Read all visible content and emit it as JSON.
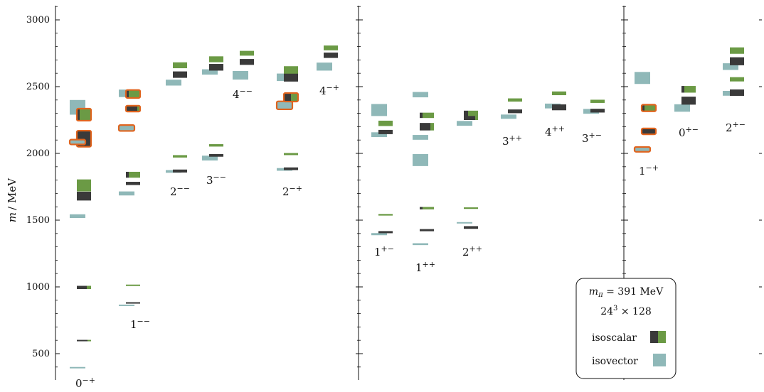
{
  "colors": {
    "isoscalar_dark": "#3a3a3a",
    "isoscalar_green": "#6b9a45",
    "isovector": "#8fb8b8",
    "highlight": "#e0641e",
    "axis": "#111111"
  },
  "chart_data": {
    "type": "spectrum",
    "ylabel_m": "m",
    "ylabel_unit": "/ MeV",
    "ylim": [
      300,
      3130
    ],
    "yticks": [
      500,
      1000,
      1500,
      2000,
      2500,
      3000
    ],
    "yticklabels": [
      "500",
      "1000",
      "1500",
      "2000",
      "2500",
      "3000"
    ],
    "legend": {
      "line1": "m",
      "line1_sub": "π",
      "line1_rest": " = 391 MeV",
      "line2_base": "24",
      "line2_sup": "3",
      "line2_rest": " × 128",
      "isoscalar": "isoscalar",
      "isovector": "isovector"
    },
    "channel_labels": [
      {
        "J": "0",
        "PC": "−+",
        "panel": 0,
        "col": 0
      },
      {
        "J": "1",
        "PC": "−−",
        "panel": 0,
        "col": 1
      },
      {
        "J": "2",
        "PC": "−−",
        "panel": 0,
        "col": 2
      },
      {
        "J": "3",
        "PC": "−−",
        "panel": 0,
        "col": 3
      },
      {
        "J": "4",
        "PC": "−−",
        "panel": 0,
        "col": 4
      },
      {
        "J": "2",
        "PC": "−+",
        "panel": 0,
        "col": 5
      },
      {
        "J": "4",
        "PC": "−+",
        "panel": 0,
        "col": 6
      },
      {
        "J": "1",
        "PC": "+−",
        "panel": 1,
        "col": 0
      },
      {
        "J": "1",
        "PC": "++",
        "panel": 1,
        "col": 1
      },
      {
        "J": "2",
        "PC": "++",
        "panel": 1,
        "col": 2
      },
      {
        "J": "3",
        "PC": "++",
        "panel": 1,
        "col": 3
      },
      {
        "J": "4",
        "PC": "++",
        "panel": 1,
        "col": 4
      },
      {
        "J": "3",
        "PC": "+−",
        "panel": 1,
        "col": 5
      },
      {
        "J": "1",
        "PC": "−+",
        "panel": 2,
        "col": 0
      },
      {
        "J": "0",
        "PC": "+−",
        "panel": 2,
        "col": 1
      },
      {
        "J": "2",
        "PC": "+−",
        "panel": 2,
        "col": 2
      }
    ],
    "states": [
      {
        "channel": 0,
        "kind": "isovector",
        "m": 395,
        "e": 3,
        "hl": false
      },
      {
        "channel": 0,
        "kind": "isoscalar",
        "m": 598,
        "e": 5,
        "frac": 0.75,
        "hl": false
      },
      {
        "channel": 0,
        "kind": "isoscalar",
        "m": 996,
        "e": 12,
        "frac": 0.7,
        "hl": false
      },
      {
        "channel": 0,
        "kind": "isovector",
        "m": 1530,
        "e": 14,
        "hl": false
      },
      {
        "channel": 0,
        "kind": "isoscalar",
        "m": 1680,
        "e": 33,
        "frac": 1.0,
        "hl": false
      },
      {
        "channel": 0,
        "kind": "isoscalar",
        "m": 1760,
        "e": 45,
        "frac": 0.0,
        "hl": false
      },
      {
        "channel": 0,
        "kind": "isoscalar",
        "m": 2110,
        "e": 60,
        "frac": 1.0,
        "hl": true
      },
      {
        "channel": 0,
        "kind": "isovector",
        "m": 2085,
        "e": 18,
        "hl": true
      },
      {
        "channel": 0,
        "kind": "isovector",
        "m": 2345,
        "e": 55,
        "hl": false
      },
      {
        "channel": 0,
        "kind": "isoscalar",
        "m": 2290,
        "e": 45,
        "frac": 0.2,
        "hl": true
      },
      {
        "channel": 1,
        "kind": "isovector",
        "m": 862,
        "e": 3,
        "hl": false
      },
      {
        "channel": 1,
        "kind": "isoscalar",
        "m": 880,
        "e": 4,
        "frac": 1.0,
        "hl": false
      },
      {
        "channel": 1,
        "kind": "isoscalar",
        "m": 1012,
        "e": 3,
        "frac": 0.0,
        "hl": false
      },
      {
        "channel": 1,
        "kind": "isovector",
        "m": 1700,
        "e": 15,
        "hl": false
      },
      {
        "channel": 1,
        "kind": "isoscalar",
        "m": 1775,
        "e": 12,
        "frac": 1.0,
        "hl": false
      },
      {
        "channel": 1,
        "kind": "isoscalar",
        "m": 1840,
        "e": 22,
        "frac": 0.2,
        "hl": false
      },
      {
        "channel": 1,
        "kind": "isovector",
        "m": 2190,
        "e": 22,
        "hl": true
      },
      {
        "channel": 1,
        "kind": "isoscalar",
        "m": 2335,
        "e": 22,
        "frac": 0.8,
        "hl": true
      },
      {
        "channel": 1,
        "kind": "isovector",
        "m": 2450,
        "e": 28,
        "hl": false
      },
      {
        "channel": 1,
        "kind": "isoscalar",
        "m": 2445,
        "e": 30,
        "frac": 0.2,
        "hl": true
      },
      {
        "channel": 2,
        "kind": "isovector",
        "m": 1865,
        "e": 10,
        "hl": false
      },
      {
        "channel": 2,
        "kind": "isoscalar",
        "m": 1868,
        "e": 11,
        "frac": 1.0,
        "hl": false
      },
      {
        "channel": 2,
        "kind": "isoscalar",
        "m": 1978,
        "e": 9,
        "frac": 0.0,
        "hl": false
      },
      {
        "channel": 2,
        "kind": "isovector",
        "m": 2530,
        "e": 22,
        "hl": false
      },
      {
        "channel": 2,
        "kind": "isoscalar",
        "m": 2590,
        "e": 24,
        "frac": 1.0,
        "hl": false
      },
      {
        "channel": 2,
        "kind": "isoscalar",
        "m": 2660,
        "e": 22,
        "frac": 0.0,
        "hl": false
      },
      {
        "channel": 3,
        "kind": "isovector",
        "m": 1965,
        "e": 18,
        "hl": false
      },
      {
        "channel": 3,
        "kind": "isoscalar",
        "m": 1985,
        "e": 10,
        "frac": 1.0,
        "hl": false
      },
      {
        "channel": 3,
        "kind": "isoscalar",
        "m": 2060,
        "e": 9,
        "frac": 0.0,
        "hl": false
      },
      {
        "channel": 3,
        "kind": "isovector",
        "m": 2610,
        "e": 20,
        "hl": false
      },
      {
        "channel": 3,
        "kind": "isoscalar",
        "m": 2645,
        "e": 25,
        "frac": 1.0,
        "hl": false
      },
      {
        "channel": 3,
        "kind": "isoscalar",
        "m": 2705,
        "e": 22,
        "frac": 0.0,
        "hl": false
      },
      {
        "channel": 4,
        "kind": "isovector",
        "m": 2585,
        "e": 32,
        "hl": false
      },
      {
        "channel": 4,
        "kind": "isoscalar",
        "m": 2685,
        "e": 22,
        "frac": 1.0,
        "hl": false
      },
      {
        "channel": 4,
        "kind": "isoscalar",
        "m": 2750,
        "e": 18,
        "frac": 0.0,
        "hl": false
      },
      {
        "channel": 5,
        "kind": "isovector",
        "m": 1880,
        "e": 10,
        "hl": false
      },
      {
        "channel": 5,
        "kind": "isoscalar",
        "m": 1885,
        "e": 10,
        "frac": 1.0,
        "hl": false
      },
      {
        "channel": 5,
        "kind": "isoscalar",
        "m": 1995,
        "e": 8,
        "frac": 0.0,
        "hl": false
      },
      {
        "channel": 5,
        "kind": "isovector",
        "m": 2360,
        "e": 30,
        "hl": true
      },
      {
        "channel": 5,
        "kind": "isoscalar",
        "m": 2420,
        "e": 32,
        "frac": 0.5,
        "hl": true
      },
      {
        "channel": 5,
        "kind": "isovector",
        "m": 2570,
        "e": 28,
        "hl": false
      },
      {
        "channel": 5,
        "kind": "isoscalar",
        "m": 2570,
        "e": 32,
        "frac": 1.0,
        "hl": false
      },
      {
        "channel": 5,
        "kind": "isoscalar",
        "m": 2625,
        "e": 28,
        "frac": 0.0,
        "hl": false
      },
      {
        "channel": 6,
        "kind": "isovector",
        "m": 2650,
        "e": 30,
        "hl": false
      },
      {
        "channel": 6,
        "kind": "isoscalar",
        "m": 2735,
        "e": 20,
        "frac": 1.0,
        "hl": false
      },
      {
        "channel": 6,
        "kind": "isoscalar",
        "m": 2790,
        "e": 18,
        "frac": 0.0,
        "hl": false
      },
      {
        "channel": 7,
        "kind": "isovector",
        "m": 1395,
        "e": 8,
        "hl": false
      },
      {
        "channel": 7,
        "kind": "isoscalar",
        "m": 1410,
        "e": 8,
        "frac": 1.0,
        "hl": false
      },
      {
        "channel": 7,
        "kind": "isoscalar",
        "m": 1540,
        "e": 6,
        "frac": 0.0,
        "hl": false
      },
      {
        "channel": 7,
        "kind": "isovector",
        "m": 2140,
        "e": 18,
        "hl": false
      },
      {
        "channel": 7,
        "kind": "isoscalar",
        "m": 2160,
        "e": 16,
        "frac": 1.0,
        "hl": false
      },
      {
        "channel": 7,
        "kind": "isoscalar",
        "m": 2225,
        "e": 20,
        "frac": 0.0,
        "hl": false
      },
      {
        "channel": 7,
        "kind": "isovector",
        "m": 2325,
        "e": 45,
        "hl": false
      },
      {
        "channel": 8,
        "kind": "isovector",
        "m": 1320,
        "e": 7,
        "hl": false
      },
      {
        "channel": 8,
        "kind": "isoscalar",
        "m": 1425,
        "e": 8,
        "frac": 1.0,
        "hl": false
      },
      {
        "channel": 8,
        "kind": "isoscalar",
        "m": 1590,
        "e": 9,
        "frac": 0.2,
        "hl": false
      },
      {
        "channel": 8,
        "kind": "isovector",
        "m": 1950,
        "e": 45,
        "hl": false
      },
      {
        "channel": 8,
        "kind": "isovector",
        "m": 2120,
        "e": 18,
        "hl": false
      },
      {
        "channel": 8,
        "kind": "isoscalar",
        "m": 2200,
        "e": 28,
        "frac": 0.75,
        "hl": false
      },
      {
        "channel": 8,
        "kind": "isoscalar",
        "m": 2285,
        "e": 20,
        "frac": 0.2,
        "hl": false
      },
      {
        "channel": 8,
        "kind": "isovector",
        "m": 2440,
        "e": 20,
        "hl": false
      },
      {
        "channel": 9,
        "kind": "isovector",
        "m": 1480,
        "e": 5,
        "hl": false
      },
      {
        "channel": 9,
        "kind": "isoscalar",
        "m": 1445,
        "e": 10,
        "frac": 1.0,
        "hl": false
      },
      {
        "channel": 9,
        "kind": "isoscalar",
        "m": 1590,
        "e": 6,
        "frac": 0.0,
        "hl": false
      },
      {
        "channel": 9,
        "kind": "isovector",
        "m": 2225,
        "e": 18,
        "hl": false
      },
      {
        "channel": 9,
        "kind": "isoscalar",
        "m": 2275,
        "e": 25,
        "frac": 0.8,
        "hl": false
      },
      {
        "channel": 9,
        "kind": "isoscalar",
        "m": 2300,
        "e": 20,
        "frac": 0.3,
        "hl": false
      },
      {
        "channel": 10,
        "kind": "isovector",
        "m": 2275,
        "e": 16,
        "hl": false
      },
      {
        "channel": 10,
        "kind": "isoscalar",
        "m": 2315,
        "e": 14,
        "frac": 1.0,
        "hl": false
      },
      {
        "channel": 10,
        "kind": "isoscalar",
        "m": 2400,
        "e": 12,
        "frac": 0.0,
        "hl": false
      },
      {
        "channel": 11,
        "kind": "isovector",
        "m": 2355,
        "e": 18,
        "hl": false
      },
      {
        "channel": 11,
        "kind": "isoscalar",
        "m": 2345,
        "e": 22,
        "frac": 1.0,
        "hl": false
      },
      {
        "channel": 11,
        "kind": "isoscalar",
        "m": 2450,
        "e": 14,
        "frac": 0.0,
        "hl": false
      },
      {
        "channel": 12,
        "kind": "isovector",
        "m": 2315,
        "e": 18,
        "hl": false
      },
      {
        "channel": 12,
        "kind": "isoscalar",
        "m": 2320,
        "e": 14,
        "frac": 1.0,
        "hl": false
      },
      {
        "channel": 12,
        "kind": "isoscalar",
        "m": 2390,
        "e": 12,
        "frac": 0.0,
        "hl": false
      },
      {
        "channel": 13,
        "kind": "isovector",
        "m": 2030,
        "e": 18,
        "hl": true
      },
      {
        "channel": 13,
        "kind": "isoscalar",
        "m": 2165,
        "e": 22,
        "frac": 1.0,
        "hl": true
      },
      {
        "channel": 13,
        "kind": "isoscalar",
        "m": 2340,
        "e": 25,
        "frac": 0.2,
        "hl": true
      },
      {
        "channel": 13,
        "kind": "isovector",
        "m": 2565,
        "e": 45,
        "hl": false
      },
      {
        "channel": 14,
        "kind": "isovector",
        "m": 2340,
        "e": 28,
        "hl": false
      },
      {
        "channel": 14,
        "kind": "isoscalar",
        "m": 2395,
        "e": 30,
        "frac": 1.0,
        "hl": false
      },
      {
        "channel": 14,
        "kind": "isoscalar",
        "m": 2480,
        "e": 25,
        "frac": 0.2,
        "hl": false
      },
      {
        "channel": 15,
        "kind": "isovector",
        "m": 2450,
        "e": 18,
        "hl": false
      },
      {
        "channel": 15,
        "kind": "isoscalar",
        "m": 2455,
        "e": 24,
        "frac": 1.0,
        "hl": false
      },
      {
        "channel": 15,
        "kind": "isovector",
        "m": 2650,
        "e": 25,
        "hl": false
      },
      {
        "channel": 15,
        "kind": "isoscalar",
        "m": 2690,
        "e": 30,
        "frac": 1.0,
        "hl": false
      },
      {
        "channel": 15,
        "kind": "isoscalar",
        "m": 2555,
        "e": 16,
        "frac": 0.0,
        "hl": false
      },
      {
        "channel": 15,
        "kind": "isoscalar",
        "m": 2770,
        "e": 24,
        "frac": 0.0,
        "hl": false
      }
    ]
  }
}
